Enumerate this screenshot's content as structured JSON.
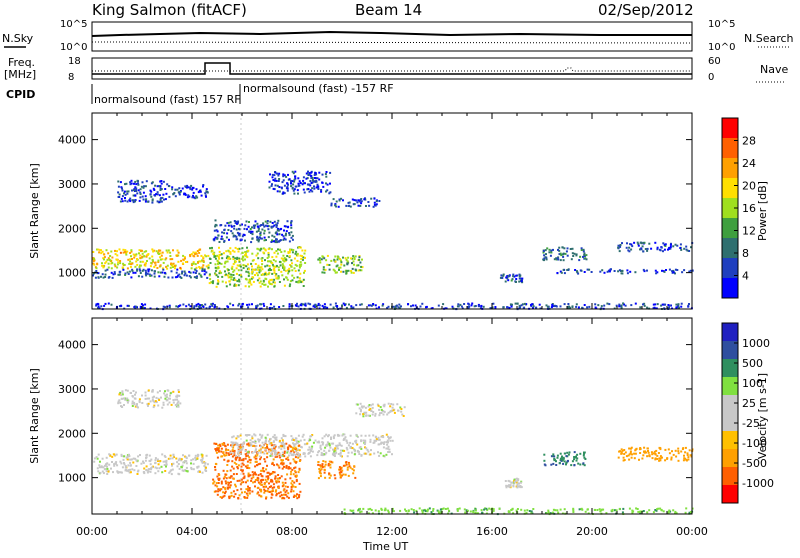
{
  "header": {
    "station": "King Salmon (fitACF)",
    "beam": "Beam 14",
    "date": "02/Sep/2012"
  },
  "noise_panel": {
    "left_label": "N.Sky",
    "right_label": "N.Search",
    "left_ticks": [
      "10^5",
      "10^0"
    ],
    "right_ticks": [
      "10^5",
      "10^0"
    ]
  },
  "freq_panel": {
    "left_label_1": "Freq.",
    "left_label_2": "[MHz]",
    "right_label": "Nave",
    "left_ticks": [
      "18",
      "8"
    ],
    "right_ticks": [
      "60",
      "0"
    ]
  },
  "cpid": {
    "label": "CPID",
    "segment_1": "normalsound (fast) 157 RF",
    "segment_2": "normalsound (fast) -157 RF"
  },
  "colors": {
    "power_scale": [
      "#0000ff",
      "#1f3fbf",
      "#2f6f6f",
      "#3f9f3f",
      "#9fdf1f",
      "#ffdf00",
      "#ffa000",
      "#ff6000",
      "#ff0000"
    ],
    "velocity_scale": [
      "#ff0000",
      "#ff5f00",
      "#ffa000",
      "#ffc000",
      "#c8c8c8",
      "#c8c8c8",
      "#80e040",
      "#2f8f5f",
      "#2f4f9f",
      "#2020c0"
    ]
  },
  "chart_data": [
    {
      "type": "heatmap",
      "title": "Power",
      "ylabel": "Slant Range [km]",
      "ylim": [
        180,
        4600
      ],
      "yticks": [
        "1000",
        "2000",
        "3000",
        "4000"
      ],
      "xlim": [
        0,
        24
      ],
      "colorbar_label": "Power [dB]",
      "colorbar_ticks": [
        "28",
        "24",
        "20",
        "16",
        "12",
        "8",
        "4"
      ],
      "colorbar_range": [
        0,
        32
      ],
      "features": [
        {
          "t0": 0.0,
          "t1": 4.6,
          "r0": 1100,
          "r1": 1550,
          "level": 20
        },
        {
          "t0": 0.0,
          "t1": 4.6,
          "r0": 900,
          "r1": 1100,
          "level": 6
        },
        {
          "t0": 1.0,
          "t1": 3.0,
          "r0": 2600,
          "r1": 3100,
          "level": 5
        },
        {
          "t0": 3.0,
          "t1": 4.6,
          "r0": 2700,
          "r1": 3000,
          "level": 4
        },
        {
          "t0": 4.6,
          "t1": 8.5,
          "r0": 700,
          "r1": 1600,
          "level": 16
        },
        {
          "t0": 4.8,
          "t1": 8.0,
          "r0": 1700,
          "r1": 2200,
          "level": 6
        },
        {
          "t0": 7.0,
          "t1": 9.5,
          "r0": 2800,
          "r1": 3300,
          "level": 4
        },
        {
          "t0": 9.0,
          "t1": 10.8,
          "r0": 1000,
          "r1": 1400,
          "level": 14
        },
        {
          "t0": 9.5,
          "t1": 11.5,
          "r0": 2500,
          "r1": 2700,
          "level": 5
        },
        {
          "t0": 0.0,
          "t1": 24.0,
          "r0": 200,
          "r1": 330,
          "level": 5
        },
        {
          "t0": 16.3,
          "t1": 17.2,
          "r0": 800,
          "r1": 1000,
          "level": 6
        },
        {
          "t0": 18.0,
          "t1": 19.8,
          "r0": 1300,
          "r1": 1600,
          "level": 9
        },
        {
          "t0": 21.0,
          "t1": 24.0,
          "r0": 1500,
          "r1": 1700,
          "level": 6
        },
        {
          "t0": 18.5,
          "t1": 24.0,
          "r0": 1000,
          "r1": 1100,
          "level": 5
        }
      ]
    },
    {
      "type": "heatmap",
      "title": "Velocity",
      "ylabel": "Slant Range [km]",
      "ylim": [
        180,
        4600
      ],
      "yticks": [
        "1000",
        "2000",
        "3000",
        "4000"
      ],
      "xlim": [
        0,
        24
      ],
      "xlabel": "Time UT",
      "xticks": [
        "00:00",
        "04:00",
        "08:00",
        "12:00",
        "16:00",
        "20:00",
        "00:00"
      ],
      "colorbar_label": "Velocity [m s-1]",
      "colorbar_ticks": [
        "1000",
        "500",
        "100",
        "25",
        "-25",
        "-100",
        "-500",
        "-1000"
      ],
      "features": [
        {
          "t0": 0.0,
          "t1": 4.6,
          "r0": 1100,
          "r1": 1550,
          "level": 0
        },
        {
          "t0": 1.0,
          "t1": 3.5,
          "r0": 2600,
          "r1": 3000,
          "level": 0
        },
        {
          "t0": 4.8,
          "t1": 8.3,
          "r0": 550,
          "r1": 1800,
          "level": -600
        },
        {
          "t0": 5.5,
          "t1": 12.0,
          "r0": 1500,
          "r1": 2000,
          "level": 0
        },
        {
          "t0": 9.0,
          "t1": 10.5,
          "r0": 1000,
          "r1": 1400,
          "level": -500
        },
        {
          "t0": 10.5,
          "t1": 12.5,
          "r0": 2400,
          "r1": 2700,
          "level": 0
        },
        {
          "t0": 10.0,
          "t1": 24.0,
          "r0": 200,
          "r1": 330,
          "level": 80
        },
        {
          "t0": 16.5,
          "t1": 17.2,
          "r0": 800,
          "r1": 1000,
          "level": 0
        },
        {
          "t0": 18.0,
          "t1": 19.8,
          "r0": 1300,
          "r1": 1600,
          "level": 400
        },
        {
          "t0": 21.0,
          "t1": 24.0,
          "r0": 1400,
          "r1": 1700,
          "level": -200
        }
      ]
    }
  ]
}
